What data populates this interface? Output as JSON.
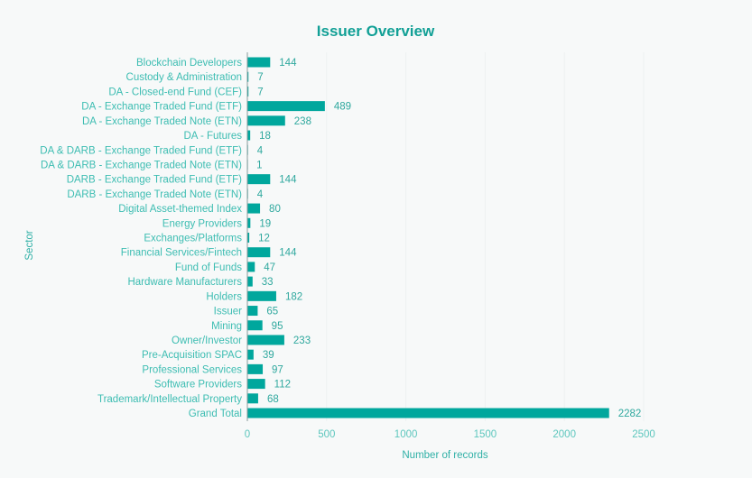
{
  "chart_data": {
    "type": "bar",
    "orientation": "horizontal",
    "title": "Issuer Overview",
    "xlabel": "Number of records",
    "ylabel": "Sector",
    "xlim": [
      0,
      2500
    ],
    "xticks": [
      0,
      500,
      1000,
      1500,
      2000,
      2500
    ],
    "grid": true,
    "bar_color": "#00a79d",
    "categories": [
      "Blockchain Developers",
      "Custody & Administration",
      "DA - Closed-end Fund (CEF)",
      "DA - Exchange Traded Fund (ETF)",
      "DA - Exchange Traded Note (ETN)",
      "DA - Futures",
      "DA & DARB - Exchange Traded Fund (ETF)",
      "DA & DARB - Exchange Traded Note (ETN)",
      "DARB - Exchange Traded Fund (ETF)",
      "DARB - Exchange Traded Note (ETN)",
      "Digital Asset-themed Index",
      "Energy Providers",
      "Exchanges/Platforms",
      "Financial Services/Fintech",
      "Fund of Funds",
      "Hardware Manufacturers",
      "Holders",
      "Issuer",
      "Mining",
      "Owner/Investor",
      "Pre-Acquisition SPAC",
      "Professional Services",
      "Software Providers",
      "Trademark/Intellectual Property",
      "Grand Total"
    ],
    "values": [
      144,
      7,
      7,
      489,
      238,
      18,
      4,
      1,
      144,
      4,
      80,
      19,
      12,
      144,
      47,
      33,
      182,
      65,
      95,
      233,
      39,
      97,
      112,
      68,
      2282
    ]
  }
}
